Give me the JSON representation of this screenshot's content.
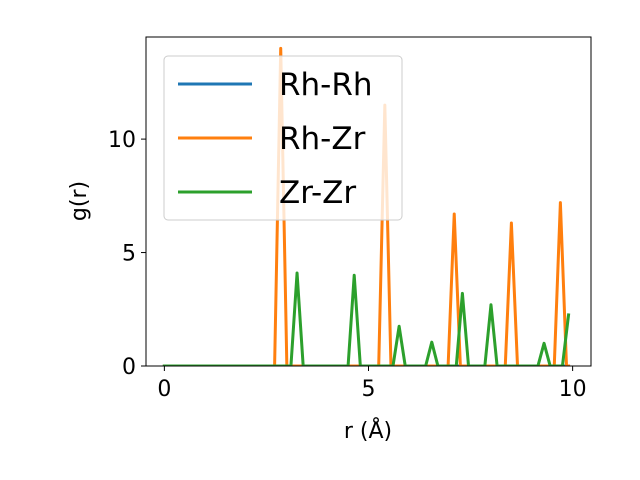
{
  "chart_data": {
    "type": "line",
    "xlabel": "r (Å)",
    "ylabel": "g(r)",
    "xlim": [
      -0.45,
      10.45
    ],
    "ylim": [
      0,
      14.5
    ],
    "xticks": [
      0,
      5,
      10
    ],
    "yticks": [
      0,
      5,
      10
    ],
    "grid": false,
    "legend_position": "upper-left",
    "series": [
      {
        "name": "Rh-Rh",
        "color": "#1f77b4",
        "x": [
          0,
          9.9
        ],
        "y": [
          0,
          0
        ]
      },
      {
        "name": "Rh-Zr",
        "color": "#ff7f0e",
        "x": [
          0,
          2.7,
          2.85,
          3.0,
          5.25,
          5.4,
          5.55,
          6.95,
          7.1,
          7.25,
          8.35,
          8.5,
          8.65,
          9.55,
          9.7,
          9.85,
          9.9
        ],
        "y": [
          0,
          0,
          14.0,
          0,
          0,
          11.5,
          0,
          0,
          6.7,
          0,
          0,
          6.3,
          0,
          0,
          7.2,
          0,
          0
        ]
      },
      {
        "name": "Zr-Zr",
        "color": "#2ca02c",
        "x": [
          0,
          3.1,
          3.25,
          3.4,
          4.5,
          4.65,
          4.8,
          5.6,
          5.75,
          5.9,
          6.4,
          6.55,
          6.7,
          7.15,
          7.3,
          7.45,
          7.85,
          8.0,
          8.15,
          9.15,
          9.3,
          9.45,
          9.75,
          9.9
        ],
        "y": [
          0,
          0,
          4.1,
          0,
          0,
          4.0,
          0,
          0,
          1.75,
          0,
          0,
          1.05,
          0,
          0,
          3.2,
          0,
          0,
          2.7,
          0,
          0,
          1.0,
          0,
          0,
          2.25
        ]
      }
    ]
  }
}
